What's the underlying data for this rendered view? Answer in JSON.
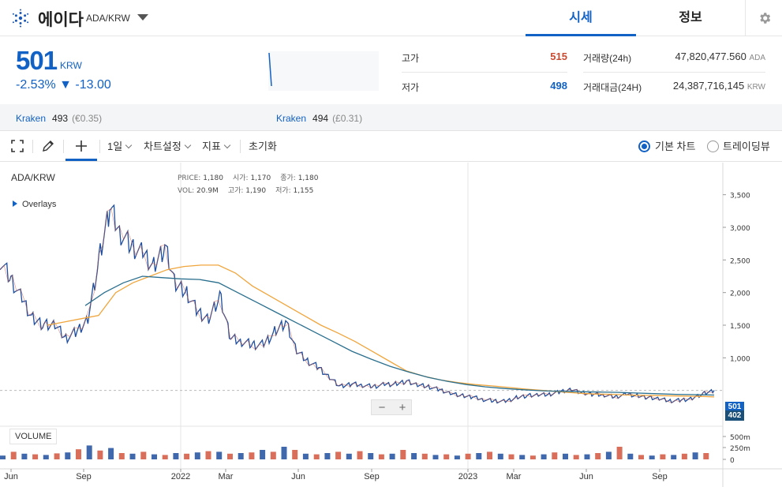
{
  "header": {
    "coin_name": "에이다",
    "pair": "ADA/KRW",
    "tabs": [
      "시세",
      "정보"
    ]
  },
  "price": {
    "current": "501",
    "unit": "KRW",
    "change": "-2.53% ▼ -13.00"
  },
  "stats": {
    "high_label": "고가",
    "high_value": "515",
    "low_label": "저가",
    "low_value": "498",
    "volume_label": "거래량(24h)",
    "volume_value": "47,820,477.560",
    "volume_unit": "ADA",
    "amount_label": "거래대금(24H)",
    "amount_value": "24,387,716,145",
    "amount_unit": "KRW"
  },
  "exchanges": [
    {
      "name": "Kraken",
      "price": "493",
      "sub": "(€0.35)"
    },
    {
      "name": "Kraken",
      "price": "494",
      "sub": "(£0.31)"
    }
  ],
  "toolbar": {
    "interval": "1일",
    "chart_settings": "차트설정",
    "indicators": "지표",
    "reset": "초기화",
    "basic_chart": "기본 차트",
    "trading_view": "트레이딩뷰"
  },
  "chart": {
    "symbol": "ADA/KRW",
    "overlays": "Overlays",
    "legend": {
      "price_label": "PRICE:",
      "price_value": "1,180",
      "open_label": "시가:",
      "open_value": "1,170",
      "close_label": "종가:",
      "close_value": "1,180",
      "vol_label": "VOL:",
      "vol_value": "20.9M",
      "high_label": "고가:",
      "high_value": "1,190",
      "low_label": "저가:",
      "low_value": "1,155"
    },
    "volume_label": "VOLUME",
    "zoom_out": "−",
    "zoom_in": "+",
    "last_price_tag": "501",
    "ma_tag": "402"
  },
  "chart_data": {
    "type": "line",
    "y_ticks": [
      "3,500",
      "3,000",
      "2,500",
      "2,000",
      "1,500",
      "1,000"
    ],
    "vol_ticks": [
      "500m",
      "250m",
      "0"
    ],
    "x_ticks": [
      "Jun",
      "Sep",
      "2022",
      "Mar",
      "Jun",
      "Sep",
      "2023",
      "Mar",
      "Jun",
      "Sep"
    ],
    "ylim": [
      0,
      3600
    ],
    "series": [
      {
        "values": [
          2500,
          2200,
          1900,
          1600,
          1500,
          1500,
          1300,
          1400,
          1600,
          2500,
          3300,
          2900,
          2700,
          2600,
          2400,
          2700,
          2100,
          2000,
          1700,
          1600,
          1950,
          1300,
          1250,
          1200,
          1200,
          1400,
          1550,
          1100,
          950,
          850,
          700,
          560,
          600,
          580,
          560,
          590,
          600,
          640,
          580,
          560,
          510,
          460,
          420,
          400,
          360,
          340,
          330,
          390,
          420,
          430,
          440,
          480,
          520,
          460,
          440,
          430,
          400,
          440,
          420,
          390,
          370,
          340,
          350,
          380,
          450,
          501
        ]
      },
      {
        "values": [
          1500,
          1550,
          1600,
          1650,
          2000,
          2150,
          2250,
          2350,
          2400,
          2420,
          2420,
          2300,
          2100,
          1950,
          1800,
          1650,
          1500,
          1380,
          1250,
          1100,
          950,
          800,
          720,
          660,
          620,
          590,
          570,
          545,
          520,
          500,
          480,
          460,
          445,
          440,
          430,
          425,
          420,
          415,
          410,
          402
        ]
      },
      {
        "values": [
          1800,
          2000,
          2150,
          2250,
          2230,
          2210,
          2200,
          2150,
          2000,
          1850,
          1700,
          1550,
          1400,
          1250,
          1100,
          980,
          870,
          780,
          700,
          640,
          590,
          555,
          530,
          510,
          495,
          485,
          480,
          475,
          470,
          460,
          450,
          440,
          435,
          430
        ]
      }
    ],
    "volume": [
      60,
      120,
      90,
      80,
      70,
      95,
      110,
      160,
      220,
      140,
      180,
      100,
      90,
      120,
      80,
      70,
      100,
      90,
      110,
      130,
      120,
      90,
      100,
      110,
      150,
      120,
      200,
      150,
      90,
      80,
      100,
      120,
      90,
      130,
      100,
      80,
      90,
      150,
      100,
      90,
      70,
      80,
      60,
      90,
      100,
      120,
      90,
      80,
      70,
      60,
      80,
      110,
      90,
      70,
      80,
      100,
      120,
      200,
      90,
      70,
      60,
      80,
      70,
      90,
      110,
      100
    ]
  }
}
